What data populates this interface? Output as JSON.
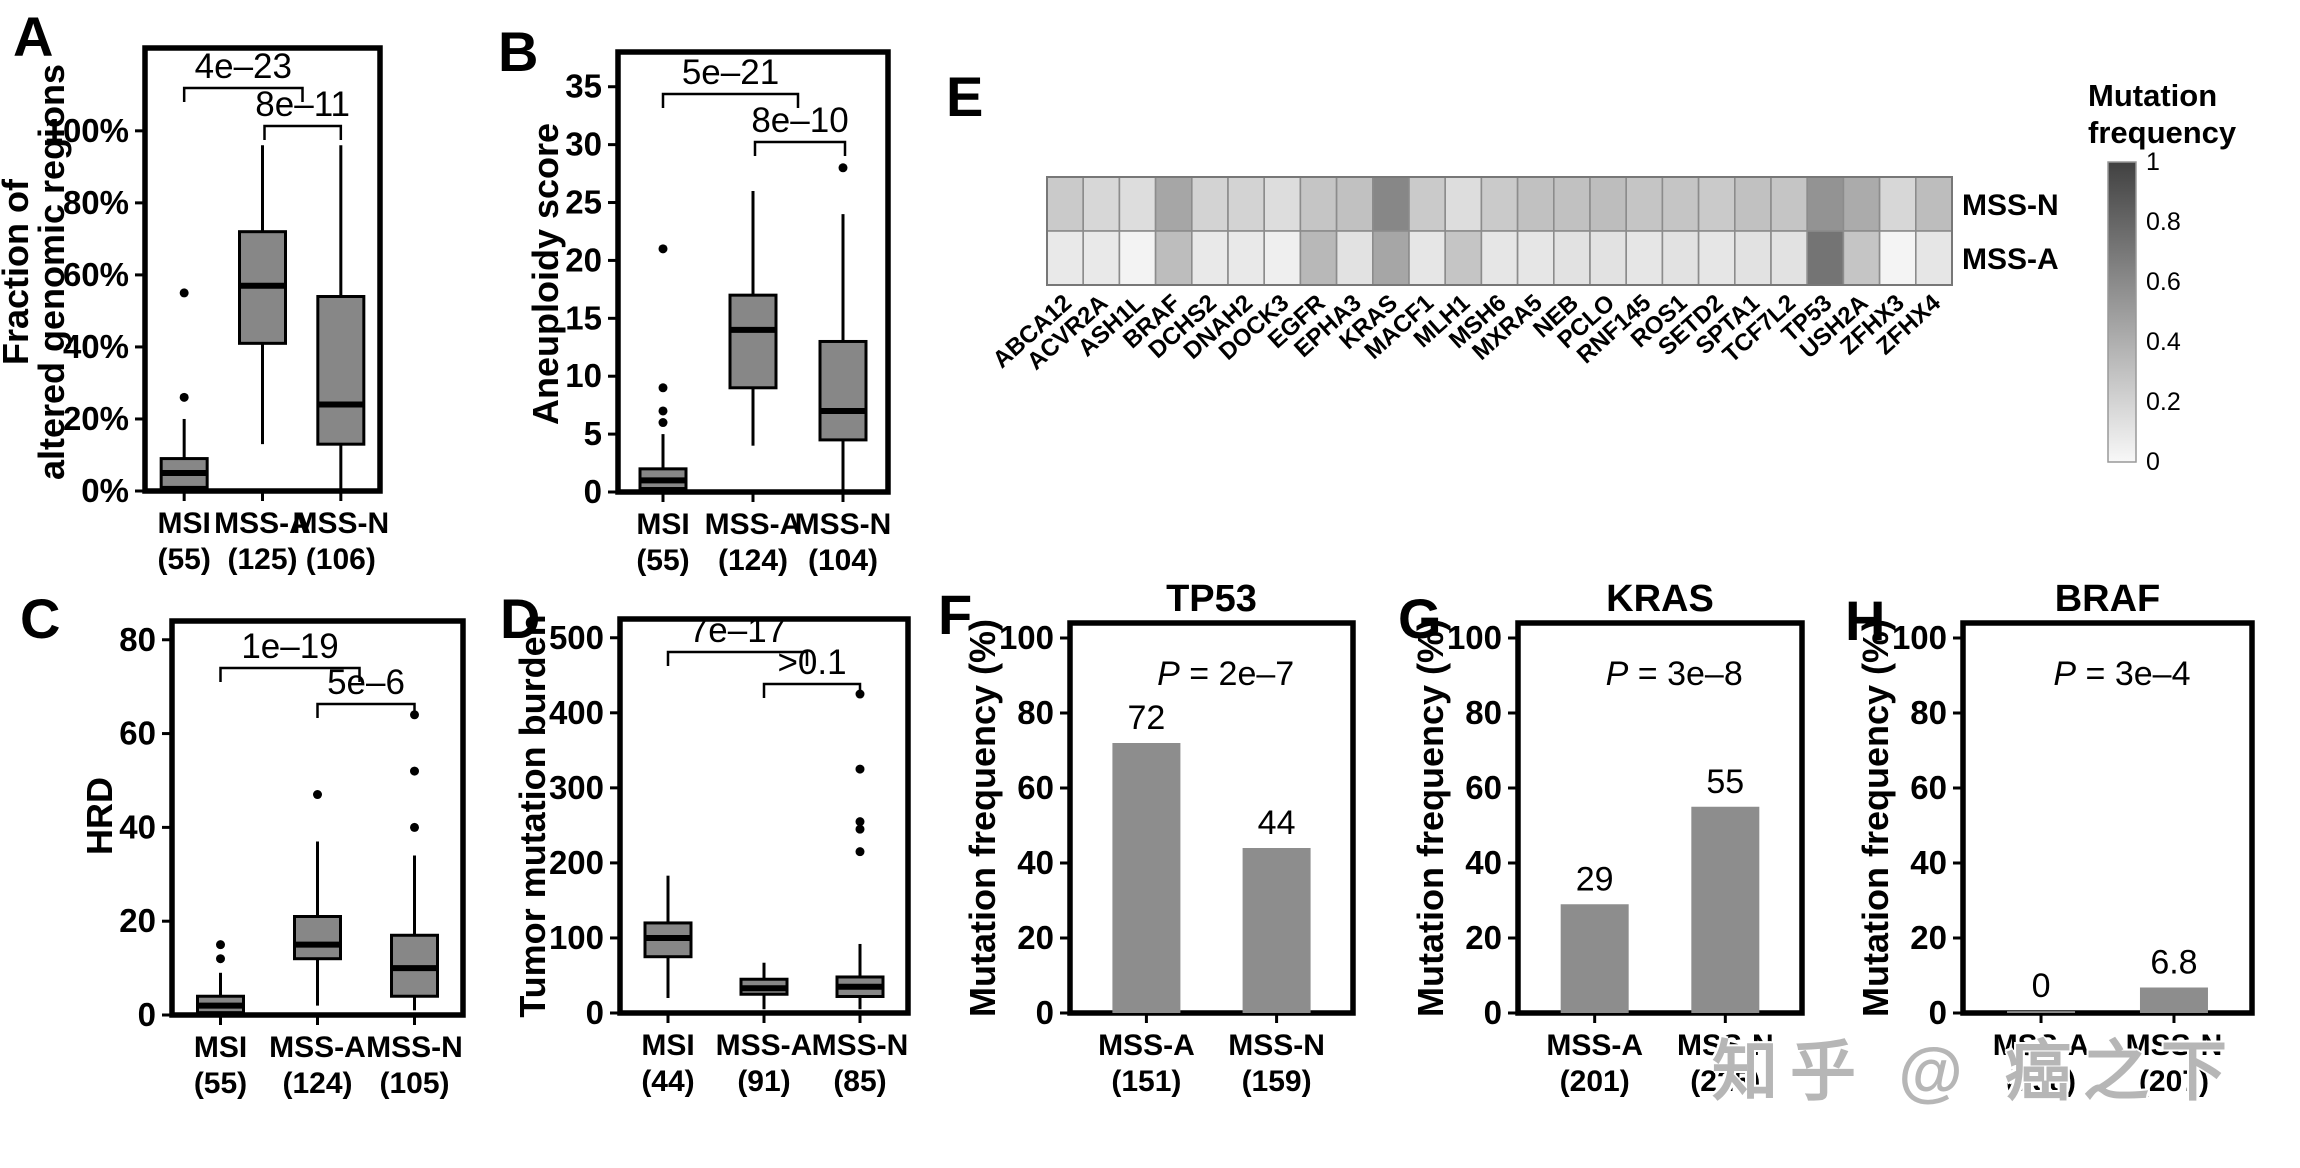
{
  "watermark": {
    "text": "知乎 @ 癌之下",
    "color": "#b6b6b6"
  },
  "colors": {
    "box_fill": "#878787",
    "bar_fill": "#8d8d8d",
    "heat_low": "#f8f8f8",
    "heat_high": "#414141",
    "axis": "#000000"
  },
  "chart_data": [
    {
      "type": "box",
      "panel": "A",
      "ylabel": "Fraction of altered genomic regions",
      "ylabel_lines": [
        "Fraction of",
        "altered genomic regions"
      ],
      "ylim": [
        0,
        123
      ],
      "yticks": [
        {
          "v": 0,
          "label": "0%"
        },
        {
          "v": 20,
          "label": "20%"
        },
        {
          "v": 40,
          "label": "40%"
        },
        {
          "v": 60,
          "label": "60%"
        },
        {
          "v": 80,
          "label": "80%"
        },
        {
          "v": 100,
          "label": "100%"
        }
      ],
      "categories": [
        "MSI",
        "MSS-A",
        "MSS-N"
      ],
      "count_labels": [
        "(55)",
        "(125)",
        "(106)"
      ],
      "boxes": [
        {
          "whislo": 0,
          "q1": 1,
          "med": 5,
          "q3": 9,
          "whishi": 20,
          "outliers": [
            26,
            55
          ]
        },
        {
          "whislo": 13,
          "q1": 41,
          "med": 57,
          "q3": 72,
          "whishi": 96,
          "outliers": []
        },
        {
          "whislo": 0,
          "q1": 13,
          "med": 24,
          "q3": 54,
          "whishi": 96,
          "outliers": []
        }
      ],
      "significance": [
        {
          "label": "4e–23"
        },
        {
          "label": "8e–11"
        }
      ]
    },
    {
      "type": "box",
      "panel": "B",
      "ylabel": "Aneuploidy score",
      "ylim": [
        0,
        38
      ],
      "yticks": [
        {
          "v": 0,
          "label": "0"
        },
        {
          "v": 5,
          "label": "5"
        },
        {
          "v": 10,
          "label": "10"
        },
        {
          "v": 15,
          "label": "15"
        },
        {
          "v": 20,
          "label": "20"
        },
        {
          "v": 25,
          "label": "25"
        },
        {
          "v": 30,
          "label": "30"
        },
        {
          "v": 35,
          "label": "35"
        }
      ],
      "categories": [
        "MSI",
        "MSS-A",
        "MSS-N"
      ],
      "count_labels": [
        "(55)",
        "(124)",
        "(104)"
      ],
      "boxes": [
        {
          "whislo": 0,
          "q1": 0.3,
          "med": 1,
          "q3": 2,
          "whishi": 5,
          "outliers": [
            6,
            7,
            9,
            21
          ]
        },
        {
          "whislo": 4,
          "q1": 9,
          "med": 14,
          "q3": 17,
          "whishi": 26,
          "outliers": []
        },
        {
          "whislo": 0.2,
          "q1": 4.5,
          "med": 7,
          "q3": 13,
          "whishi": 24,
          "outliers": [
            28
          ]
        }
      ],
      "significance": [
        {
          "label": "5e–21"
        },
        {
          "label": "8e–10"
        }
      ]
    },
    {
      "type": "box",
      "panel": "C",
      "ylabel": "HRD",
      "ylim": [
        0,
        84
      ],
      "yticks": [
        {
          "v": 0,
          "label": "0"
        },
        {
          "v": 20,
          "label": "20"
        },
        {
          "v": 40,
          "label": "40"
        },
        {
          "v": 60,
          "label": "60"
        },
        {
          "v": 80,
          "label": "80"
        }
      ],
      "categories": [
        "MSI",
        "MSS-A",
        "MSS-N"
      ],
      "count_labels": [
        "(55)",
        "(124)",
        "(105)"
      ],
      "boxes": [
        {
          "whislo": 0,
          "q1": 0.5,
          "med": 2,
          "q3": 4,
          "whishi": 9,
          "outliers": [
            12,
            15
          ]
        },
        {
          "whislo": 2,
          "q1": 12,
          "med": 15,
          "q3": 21,
          "whishi": 37,
          "outliers": [
            47
          ]
        },
        {
          "whislo": 1,
          "q1": 4,
          "med": 10,
          "q3": 17,
          "whishi": 34,
          "outliers": [
            40,
            52,
            64
          ]
        }
      ],
      "significance": [
        {
          "label": "1e–19"
        },
        {
          "label": "5e–6"
        }
      ]
    },
    {
      "type": "box",
      "panel": "D",
      "ylabel": "Tumor mutation burden",
      "ylim": [
        0,
        525
      ],
      "yticks": [
        {
          "v": 0,
          "label": "0"
        },
        {
          "v": 100,
          "label": "100"
        },
        {
          "v": 200,
          "label": "200"
        },
        {
          "v": 300,
          "label": "300"
        },
        {
          "v": 400,
          "label": "400"
        },
        {
          "v": 500,
          "label": "500"
        }
      ],
      "categories": [
        "MSI",
        "MSS-A",
        "MSS-N"
      ],
      "count_labels": [
        "(44)",
        "(91)",
        "(85)"
      ],
      "boxes": [
        {
          "whislo": 20,
          "q1": 75,
          "med": 100,
          "q3": 120,
          "whishi": 183,
          "outliers": []
        },
        {
          "whislo": 5,
          "q1": 25,
          "med": 33,
          "q3": 45,
          "whishi": 67,
          "outliers": []
        },
        {
          "whislo": 5,
          "q1": 22,
          "med": 35,
          "q3": 48,
          "whishi": 92,
          "outliers": [
            215,
            245,
            255,
            325,
            425
          ]
        }
      ],
      "significance": [
        {
          "label": "7e–17"
        },
        {
          "label": ">0.1"
        }
      ]
    },
    {
      "type": "heatmap",
      "panel": "E",
      "legend_title_lines": [
        "Mutation",
        "frequency"
      ],
      "row_labels": [
        "MSS-N",
        "MSS-A"
      ],
      "genes": [
        "ABCA12",
        "ACVR2A",
        "ASH1L",
        "BRAF",
        "DCHS2",
        "DNAH2",
        "DOCK3",
        "EGFR",
        "EPHA3",
        "KRAS",
        "MACF1",
        "MLH1",
        "MSH6",
        "MXRA5",
        "NEB",
        "PCLO",
        "RNF145",
        "ROS1",
        "SETD2",
        "SPTA1",
        "TCF7L2",
        "TP53",
        "USH2A",
        "ZFHX3",
        "ZFHX4"
      ],
      "series": [
        {
          "name": "MSS-N",
          "values": [
            0.25,
            0.18,
            0.15,
            0.45,
            0.2,
            0.2,
            0.15,
            0.28,
            0.3,
            0.62,
            0.25,
            0.15,
            0.25,
            0.3,
            0.3,
            0.32,
            0.28,
            0.28,
            0.25,
            0.3,
            0.28,
            0.55,
            0.42,
            0.18,
            0.32
          ]
        },
        {
          "name": "MSS-A",
          "values": [
            0.08,
            0.08,
            0.03,
            0.32,
            0.08,
            0.08,
            0.05,
            0.35,
            0.12,
            0.45,
            0.1,
            0.28,
            0.1,
            0.1,
            0.12,
            0.12,
            0.1,
            0.12,
            0.1,
            0.12,
            0.12,
            0.72,
            0.28,
            0.02,
            0.1
          ]
        }
      ],
      "value_range": [
        0,
        1
      ],
      "colorbar_ticks": [
        "1",
        "0.8",
        "0.6",
        "0.4",
        "0.2",
        "0"
      ]
    },
    {
      "type": "bar",
      "panel": "F",
      "title": "TP53",
      "ylabel": "Mutation frequency (%)",
      "ylim": [
        0,
        104
      ],
      "yticks": [
        {
          "v": 0,
          "label": "0"
        },
        {
          "v": 20,
          "label": "20"
        },
        {
          "v": 40,
          "label": "40"
        },
        {
          "v": 60,
          "label": "60"
        },
        {
          "v": 80,
          "label": "80"
        },
        {
          "v": 100,
          "label": "100"
        }
      ],
      "categories": [
        "MSS-A",
        "MSS-N"
      ],
      "count_labels": [
        "(151)",
        "(159)"
      ],
      "values": [
        72,
        44
      ],
      "value_labels": [
        "72",
        "44"
      ],
      "pvalue": "P = 2e–7"
    },
    {
      "type": "bar",
      "panel": "G",
      "title": "KRAS",
      "ylabel": "Mutation frequency (%)",
      "ylim": [
        0,
        104
      ],
      "yticks": [
        {
          "v": 0,
          "label": "0"
        },
        {
          "v": 20,
          "label": "20"
        },
        {
          "v": 40,
          "label": "40"
        },
        {
          "v": 60,
          "label": "60"
        },
        {
          "v": 80,
          "label": "80"
        },
        {
          "v": 100,
          "label": "100"
        }
      ],
      "categories": [
        "MSS-A",
        "MSS-N"
      ],
      "count_labels": [
        "(201)",
        "(225)"
      ],
      "values": [
        29,
        55
      ],
      "value_labels": [
        "29",
        "55"
      ],
      "pvalue": "P = 3e–8"
    },
    {
      "type": "bar",
      "panel": "H",
      "title": "BRAF",
      "ylabel": "Mutation frequency (%)",
      "ylim": [
        0,
        104
      ],
      "yticks": [
        {
          "v": 0,
          "label": "0"
        },
        {
          "v": 20,
          "label": "20"
        },
        {
          "v": 40,
          "label": "40"
        },
        {
          "v": 60,
          "label": "60"
        },
        {
          "v": 80,
          "label": "80"
        },
        {
          "v": 100,
          "label": "100"
        }
      ],
      "categories": [
        "MSS-A",
        "MSS-N"
      ],
      "count_labels": [
        "(158)",
        "(207)"
      ],
      "values": [
        0.5,
        6.8
      ],
      "value_labels": [
        "0",
        "6.8"
      ],
      "pvalue": "P = 3e–4"
    }
  ]
}
